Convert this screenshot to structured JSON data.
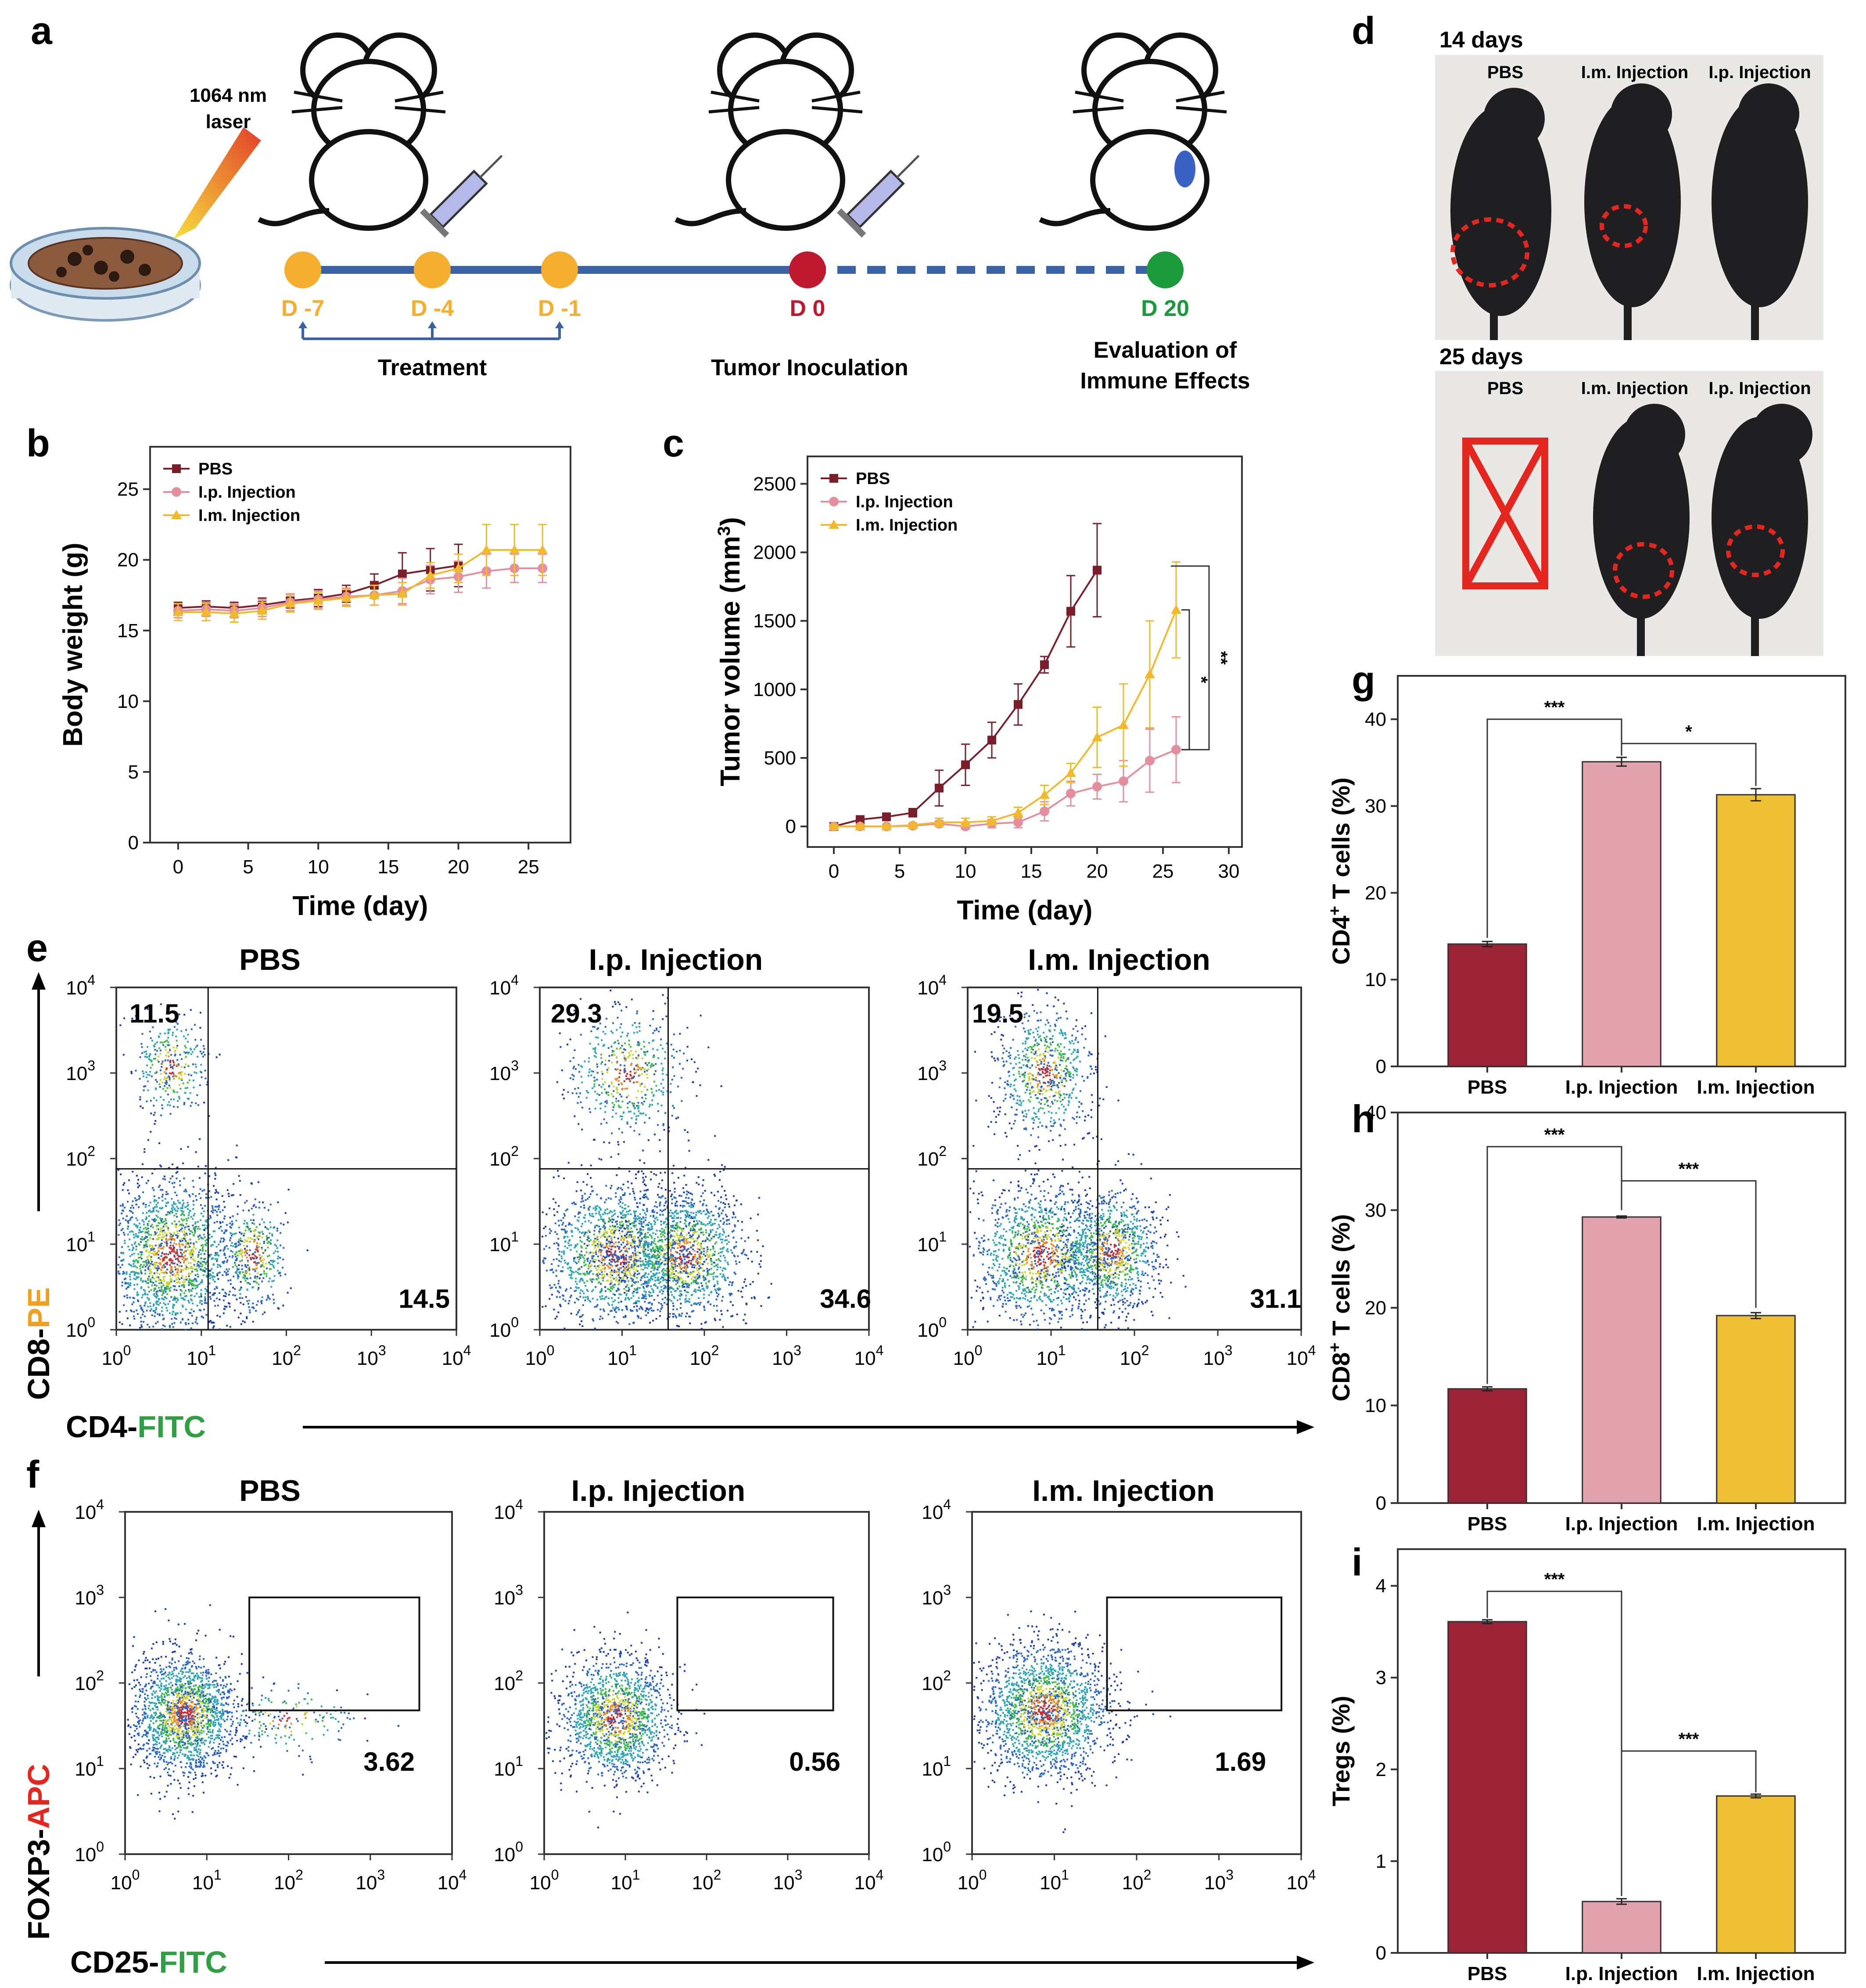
{
  "panel_labels": {
    "a": "a",
    "b": "b",
    "c": "c",
    "d": "d",
    "e": "e",
    "f": "f",
    "g": "g",
    "h": "h",
    "i": "i"
  },
  "panel_a": {
    "laser_line1": "1064 nm",
    "laser_line2": "laser",
    "days": [
      "D -7",
      "D -4",
      "D -1",
      "D 0",
      "D 20"
    ],
    "treatment_label": "Treatment",
    "inoculation_label": "Tumor Inoculation",
    "evaluation_line1": "Evaluation of",
    "evaluation_line2": "Immune Effects",
    "colors": {
      "timeline": "#3a62a7",
      "treatment": "#f5ae2d",
      "inoculation": "#c0182e",
      "evaluation": "#1a9a3a"
    }
  },
  "panel_d": {
    "row1_title": "14 days",
    "row2_title": "25 days",
    "groups": [
      "PBS",
      "I.m. Injection",
      "I.p. Injection"
    ]
  },
  "flow_e": {
    "titles": [
      "PBS",
      "I.p. Injection",
      "I.m. Injection"
    ],
    "upper_left": [
      "11.5",
      "29.3",
      "19.5"
    ],
    "lower_right": [
      "14.5",
      "34.6",
      "31.1"
    ],
    "y_label_a": "CD8-",
    "y_label_b": "PE",
    "x_label_a": "CD4-",
    "x_label_b": "FITC"
  },
  "flow_f": {
    "titles": [
      "PBS",
      "I.p. Injection",
      "I.m. Injection"
    ],
    "gate_values": [
      "3.62",
      "0.56",
      "1.69"
    ],
    "y_label_a": "FOXP3-",
    "y_label_b": "APC",
    "x_label_a": "CD25-",
    "x_label_b": "FITC"
  },
  "flow_ticks": {
    "base": "10",
    "exps": [
      "0",
      "1",
      "2",
      "3",
      "4"
    ]
  },
  "colors": {
    "pbs": "#9b2335",
    "ip": "#e3a3ae",
    "im": "#efc034",
    "pbs_line": "#7a1e2c",
    "ip_line": "#e48f9e",
    "im_line": "#f2b92c",
    "fitc": "#2ea043",
    "pe": "#f0a020",
    "apc": "#e5261f"
  },
  "chart_data": [
    {
      "id": "b",
      "type": "line",
      "xlabel": "Time (day)",
      "ylabel": "Body weight (g)",
      "xlim": [
        -2,
        28
      ],
      "ylim": [
        0,
        28
      ],
      "xticks": [
        0,
        5,
        10,
        15,
        20,
        25
      ],
      "yticks": [
        0,
        5,
        10,
        15,
        20,
        25
      ],
      "legend": "top-left",
      "series": [
        {
          "name": "PBS",
          "marker": "square",
          "x": [
            0,
            2,
            4,
            6,
            8,
            10,
            12,
            14,
            16,
            18,
            20
          ],
          "y": [
            16.6,
            16.7,
            16.6,
            16.8,
            17.1,
            17.3,
            17.6,
            18.2,
            19.0,
            19.3,
            19.6
          ],
          "err": [
            0.4,
            0.4,
            0.4,
            0.5,
            0.5,
            0.6,
            0.6,
            0.8,
            1.5,
            1.5,
            1.5
          ]
        },
        {
          "name": "I.p. Injection",
          "marker": "circle",
          "x": [
            0,
            2,
            4,
            6,
            8,
            10,
            12,
            14,
            16,
            18,
            20,
            22,
            24,
            26
          ],
          "y": [
            16.4,
            16.5,
            16.4,
            16.6,
            17.0,
            17.2,
            17.4,
            17.5,
            17.8,
            18.6,
            18.8,
            19.2,
            19.4,
            19.4
          ],
          "err": [
            0.5,
            0.5,
            0.5,
            0.6,
            0.6,
            0.6,
            0.6,
            0.7,
            0.9,
            1.0,
            1.1,
            1.2,
            1.0,
            1.0
          ]
        },
        {
          "name": "I.m. Injection",
          "marker": "triangle",
          "x": [
            0,
            2,
            4,
            6,
            8,
            10,
            12,
            14,
            16,
            18,
            20,
            22,
            24,
            26
          ],
          "y": [
            16.3,
            16.3,
            16.2,
            16.4,
            16.9,
            17.1,
            17.3,
            17.5,
            17.6,
            18.9,
            19.4,
            20.7,
            20.7,
            20.7
          ],
          "err": [
            0.6,
            0.6,
            0.6,
            0.6,
            0.6,
            0.6,
            0.6,
            0.7,
            0.8,
            0.9,
            1.0,
            1.8,
            1.8,
            1.8
          ]
        }
      ]
    },
    {
      "id": "c",
      "type": "line",
      "xlabel": "Time (day)",
      "ylabel": "Tumor volume (mm3)",
      "xlim": [
        -2,
        31
      ],
      "ylim": [
        -150,
        2700
      ],
      "xticks": [
        0,
        5,
        10,
        15,
        20,
        25,
        30
      ],
      "yticks": [
        0,
        500,
        1000,
        1500,
        2000,
        2500
      ],
      "legend": "top-left",
      "significance": [
        "*",
        "**"
      ],
      "series": [
        {
          "name": "PBS",
          "marker": "square",
          "x": [
            0,
            2,
            4,
            6,
            8,
            10,
            12,
            14,
            16,
            18,
            20
          ],
          "y": [
            0,
            50,
            70,
            100,
            280,
            450,
            630,
            890,
            1180,
            1570,
            1870
          ],
          "err": [
            20,
            20,
            25,
            30,
            130,
            150,
            130,
            150,
            60,
            260,
            340
          ]
        },
        {
          "name": "I.p. Injection",
          "marker": "circle",
          "x": [
            0,
            2,
            4,
            6,
            8,
            10,
            12,
            14,
            16,
            18,
            20,
            22,
            24,
            26
          ],
          "y": [
            0,
            0,
            0,
            5,
            20,
            0,
            20,
            30,
            110,
            240,
            290,
            330,
            480,
            560
          ],
          "err": [
            10,
            10,
            10,
            15,
            20,
            20,
            30,
            40,
            70,
            90,
            90,
            150,
            230,
            240
          ]
        },
        {
          "name": "I.m. Injection",
          "marker": "triangle",
          "x": [
            0,
            2,
            4,
            6,
            8,
            10,
            12,
            14,
            16,
            18,
            20,
            22,
            24,
            26
          ],
          "y": [
            0,
            0,
            0,
            10,
            30,
            30,
            40,
            100,
            230,
            390,
            650,
            740,
            1110,
            1580
          ],
          "err": [
            10,
            10,
            10,
            15,
            30,
            30,
            30,
            40,
            70,
            70,
            220,
            300,
            390,
            350
          ]
        }
      ]
    },
    {
      "id": "g",
      "type": "bar",
      "categories": [
        "PBS",
        "I.p. Injection",
        "I.m. Injection"
      ],
      "values": [
        14.1,
        35.1,
        31.3
      ],
      "err": [
        0.3,
        0.5,
        0.7
      ],
      "ylabel_a": "CD4",
      "ylabel_sup": "+",
      "ylabel_b": " T cells (%)",
      "ylim": [
        0,
        45
      ],
      "yticks": [
        0,
        10,
        20,
        30,
        40
      ],
      "significance": [
        "***",
        "*"
      ]
    },
    {
      "id": "h",
      "type": "bar",
      "categories": [
        "PBS",
        "I.p. Injection",
        "I.m. Injection"
      ],
      "values": [
        11.7,
        29.3,
        19.2
      ],
      "err": [
        0.2,
        0.1,
        0.3
      ],
      "ylabel_a": "CD8",
      "ylabel_sup": "+",
      "ylabel_b": " T cells (%)",
      "ylim": [
        0,
        40
      ],
      "yticks": [
        0,
        10,
        20,
        30,
        40
      ],
      "significance": [
        "***",
        "***"
      ]
    },
    {
      "id": "i",
      "type": "bar",
      "categories": [
        "PBS",
        "I.p. Injection",
        "I.m. Injection"
      ],
      "values": [
        3.61,
        0.56,
        1.71
      ],
      "err": [
        0.02,
        0.03,
        0.02
      ],
      "ylabel": "Tregs (%)",
      "ylim": [
        0,
        4.4
      ],
      "yticks": [
        0,
        1,
        2,
        3,
        4
      ],
      "significance": [
        "***",
        "***"
      ]
    }
  ]
}
